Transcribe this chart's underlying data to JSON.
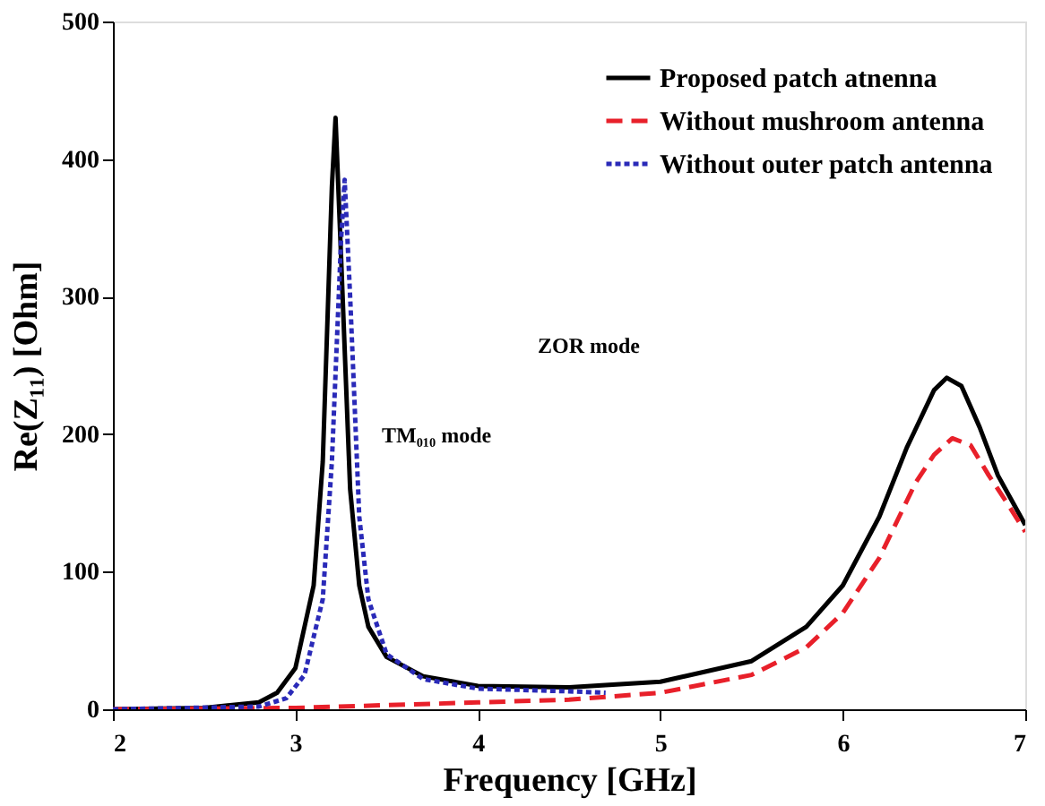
{
  "chart_data": {
    "type": "line",
    "xlabel": "Frequency [GHz]",
    "ylabel": "Re(Z₁₁) [Ohm]",
    "xlim": [
      2,
      7
    ],
    "xticks": [
      2,
      3,
      4,
      5,
      6,
      7
    ],
    "ylim": [
      0,
      500
    ],
    "yticks": [
      0,
      100,
      200,
      300,
      400,
      500
    ],
    "grid": false,
    "legend": "top right",
    "marker": "none",
    "annotations": [
      "ZOR mode",
      "TM₀₁₀ mode"
    ],
    "series": [
      {
        "name": "Proposed patch atnenna",
        "color": "#000000",
        "line_style": "solid",
        "x": [
          2,
          2.5,
          2.8,
          2.9,
          3.0,
          3.1,
          3.15,
          3.2,
          3.22,
          3.25,
          3.3,
          3.35,
          3.4,
          3.5,
          3.7,
          4.0,
          4.5,
          5.0,
          5.5,
          5.8,
          6.0,
          6.2,
          6.35,
          6.5,
          6.57,
          6.65,
          6.75,
          6.85,
          7.0
        ],
        "values": [
          0,
          1,
          5,
          12,
          30,
          90,
          180,
          380,
          430,
          330,
          160,
          90,
          60,
          38,
          24,
          17,
          16,
          20,
          35,
          60,
          90,
          140,
          190,
          232,
          241,
          235,
          205,
          170,
          134
        ]
      },
      {
        "name": "Without mushroom antenna",
        "color": "#e8202a",
        "line_style": "dashed",
        "x": [
          2,
          3,
          3.5,
          4,
          4.5,
          5,
          5.5,
          5.8,
          6.0,
          6.2,
          6.4,
          6.5,
          6.6,
          6.7,
          6.8,
          6.9,
          7.0
        ],
        "values": [
          0,
          1,
          3,
          5,
          7,
          12,
          25,
          45,
          70,
          110,
          165,
          185,
          197,
          192,
          170,
          150,
          129
        ]
      },
      {
        "name": "Without outer patch antenna",
        "color": "#2a2ab8",
        "line_style": "dotted",
        "x": [
          2,
          2.8,
          2.95,
          3.05,
          3.15,
          3.2,
          3.25,
          3.27,
          3.3,
          3.35,
          3.4,
          3.5,
          3.7,
          4.0,
          4.5,
          4.7
        ],
        "values": [
          0,
          2,
          8,
          25,
          80,
          180,
          340,
          385,
          300,
          140,
          80,
          40,
          22,
          15,
          13,
          12
        ]
      }
    ]
  }
}
